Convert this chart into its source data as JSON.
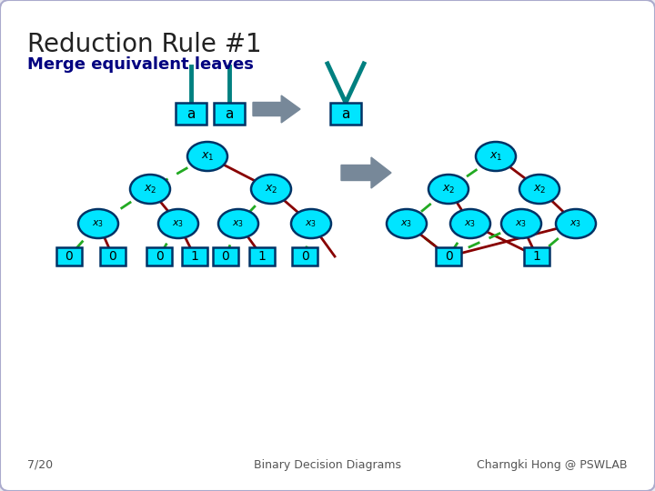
{
  "title": "Reduction Rule #1",
  "subtitle": "Merge equivalent leaves",
  "bg_color": "#e8e8f0",
  "node_fill": "#00e5ff",
  "node_edge": "#003366",
  "leaf_fill": "#00e5ff",
  "leaf_edge": "#003366",
  "green_edge": "#22aa22",
  "red_edge": "#880000",
  "teal_line": "#008080",
  "arrow_fill": "#778899",
  "footer_left": "7/20",
  "footer_center": "Binary Decision Diagrams",
  "footer_right": "Charngki Hong @ PSWLAB"
}
